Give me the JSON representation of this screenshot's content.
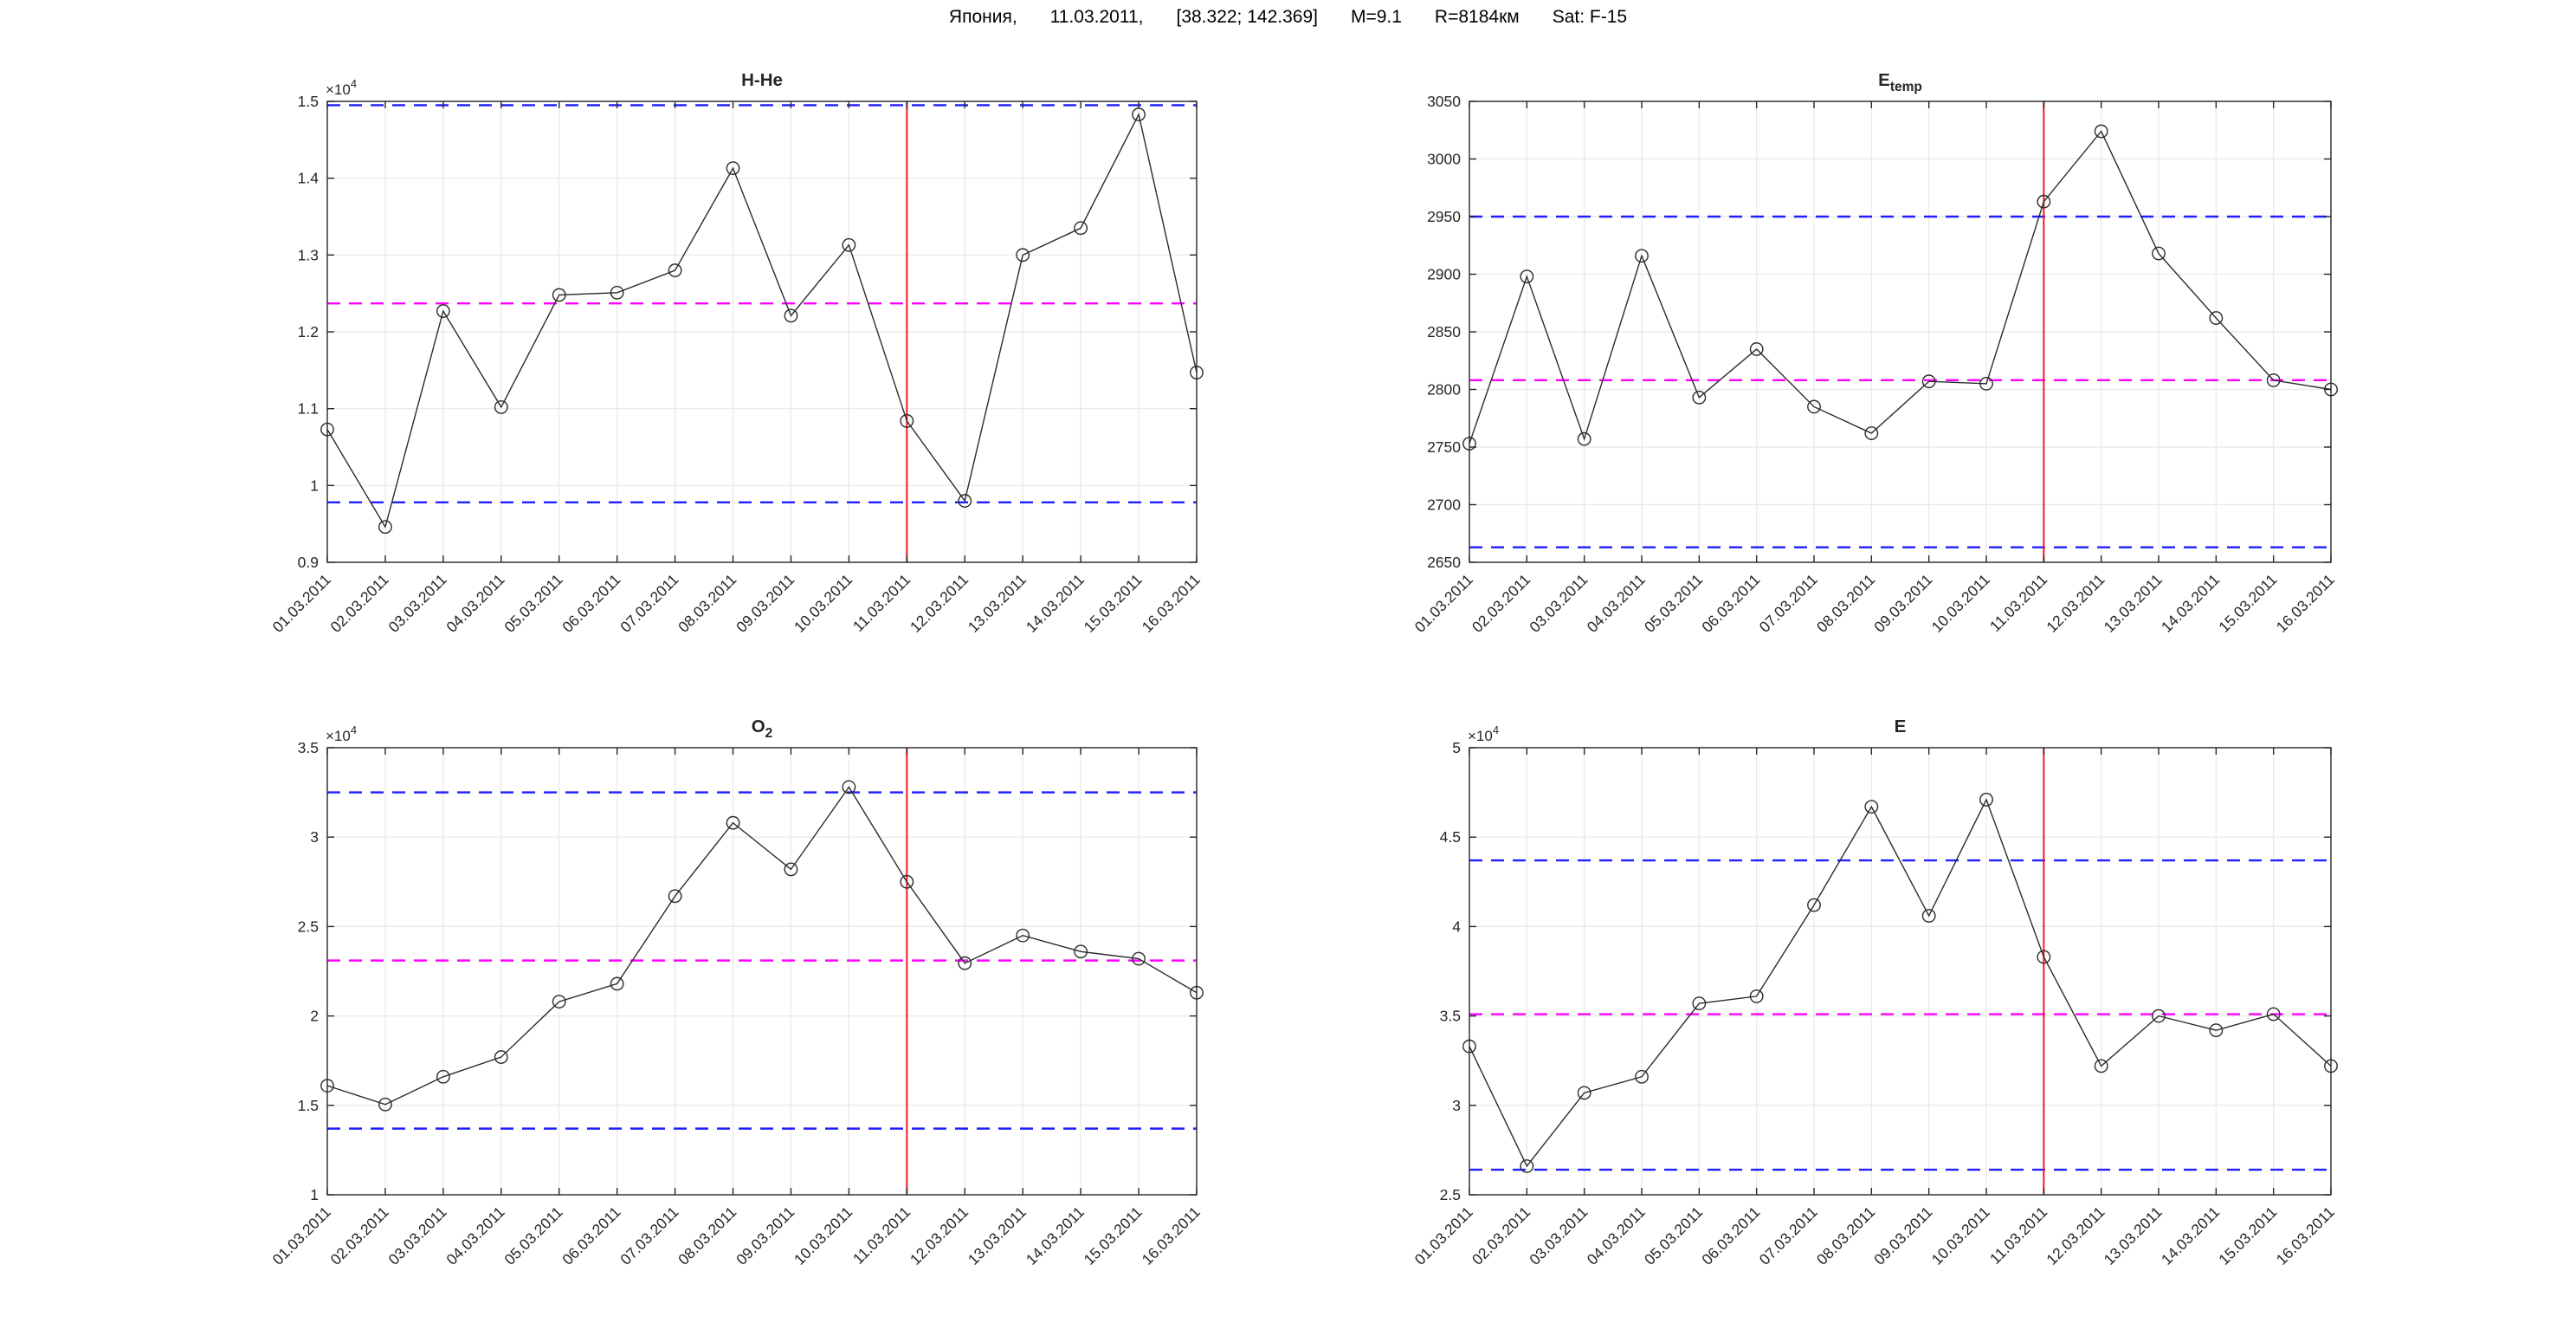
{
  "figure": {
    "suptitle_segments": [
      "Япония,",
      "11.03.2011,",
      "[38.322; 142.369]",
      "M=9.1",
      "R=8184км",
      "Sat: F-15"
    ]
  },
  "colors": {
    "series": "#2b2b2b",
    "bound_line": "#1f1fff",
    "mean_line": "#ff00ff",
    "event_line": "#f21b1b",
    "grid": "#e8e8e8",
    "axis": "#262626"
  },
  "chart_data": [
    {
      "type": "line",
      "title": "H-He",
      "title_sub": "",
      "exponent_base": "×10",
      "exponent_power": "4",
      "categories": [
        "01.03.2011",
        "02.03.2011",
        "03.03.2011",
        "04.03.2011",
        "05.03.2011",
        "06.03.2011",
        "07.03.2011",
        "08.03.2011",
        "09.03.2011",
        "10.03.2011",
        "11.03.2011",
        "12.03.2011",
        "13.03.2011",
        "14.03.2011",
        "15.03.2011",
        "16.03.2011"
      ],
      "values": [
        1.073,
        0.946,
        1.227,
        1.102,
        1.248,
        1.251,
        1.28,
        1.413,
        1.221,
        1.313,
        1.084,
        0.98,
        1.3,
        1.335,
        1.483,
        1.147
      ],
      "mean": 1.237,
      "upper": 1.495,
      "lower": 0.978,
      "event_x": "11.03.2011",
      "ylim": [
        0.9,
        1.5
      ],
      "yticks": [
        0.9,
        1.0,
        1.1,
        1.2,
        1.3,
        1.4,
        1.5
      ],
      "ytick_labels": [
        "0.9",
        "1",
        "1.1",
        "1.2",
        "1.3",
        "1.4",
        "1.5"
      ],
      "grid": true,
      "legend": null
    },
    {
      "type": "line",
      "title": "E",
      "title_sub": "temp",
      "exponent_base": "",
      "exponent_power": "",
      "categories": [
        "01.03.2011",
        "02.03.2011",
        "03.03.2011",
        "04.03.2011",
        "05.03.2011",
        "06.03.2011",
        "07.03.2011",
        "08.03.2011",
        "09.03.2011",
        "10.03.2011",
        "11.03.2011",
        "12.03.2011",
        "13.03.2011",
        "14.03.2011",
        "15.03.2011",
        "16.03.2011"
      ],
      "values": [
        2753,
        2898,
        2757,
        2916,
        2793,
        2835,
        2785,
        2762,
        2807,
        2805,
        2963,
        3024,
        2918,
        2862,
        2808,
        2800
      ],
      "mean": 2808,
      "upper": 2950,
      "lower": 2663,
      "event_x": "11.03.2011",
      "ylim": [
        2650,
        3050
      ],
      "yticks": [
        2650,
        2700,
        2750,
        2800,
        2850,
        2900,
        2950,
        3000,
        3050
      ],
      "ytick_labels": [
        "2650",
        "2700",
        "2750",
        "2800",
        "2850",
        "2900",
        "2950",
        "3000",
        "3050"
      ],
      "grid": true,
      "legend": null
    },
    {
      "type": "line",
      "title": "O",
      "title_sub": "2",
      "exponent_base": "×10",
      "exponent_power": "4",
      "categories": [
        "01.03.2011",
        "02.03.2011",
        "03.03.2011",
        "04.03.2011",
        "05.03.2011",
        "06.03.2011",
        "07.03.2011",
        "08.03.2011",
        "09.03.2011",
        "10.03.2011",
        "11.03.2011",
        "12.03.2011",
        "13.03.2011",
        "14.03.2011",
        "15.03.2011",
        "16.03.2011"
      ],
      "values": [
        1.61,
        1.505,
        1.66,
        1.77,
        2.08,
        2.18,
        2.67,
        3.08,
        2.82,
        3.28,
        2.75,
        2.295,
        2.45,
        2.36,
        2.32,
        2.13
      ],
      "mean": 2.31,
      "upper": 3.25,
      "lower": 1.37,
      "event_x": "11.03.2011",
      "ylim": [
        1.0,
        3.5
      ],
      "yticks": [
        1.0,
        1.5,
        2.0,
        2.5,
        3.0,
        3.5
      ],
      "ytick_labels": [
        "1",
        "1.5",
        "2",
        "2.5",
        "3",
        "3.5"
      ],
      "grid": true,
      "legend": null
    },
    {
      "type": "line",
      "title": "E",
      "title_sub": "",
      "exponent_base": "×10",
      "exponent_power": "4",
      "categories": [
        "01.03.2011",
        "02.03.2011",
        "03.03.2011",
        "04.03.2011",
        "05.03.2011",
        "06.03.2011",
        "07.03.2011",
        "08.03.2011",
        "09.03.2011",
        "10.03.2011",
        "11.03.2011",
        "12.03.2011",
        "13.03.2011",
        "14.03.2011",
        "15.03.2011",
        "16.03.2011"
      ],
      "values": [
        3.33,
        2.66,
        3.07,
        3.16,
        3.57,
        3.61,
        4.12,
        4.67,
        4.06,
        4.71,
        3.83,
        3.22,
        3.5,
        3.42,
        3.51,
        3.22
      ],
      "mean": 3.51,
      "upper": 4.37,
      "lower": 2.64,
      "event_x": "11.03.2011",
      "ylim": [
        2.5,
        5.0
      ],
      "yticks": [
        2.5,
        3.0,
        3.5,
        4.0,
        4.5,
        5.0
      ],
      "ytick_labels": [
        "2.5",
        "3",
        "3.5",
        "4",
        "4.5",
        "5"
      ],
      "grid": true,
      "legend": null
    }
  ]
}
